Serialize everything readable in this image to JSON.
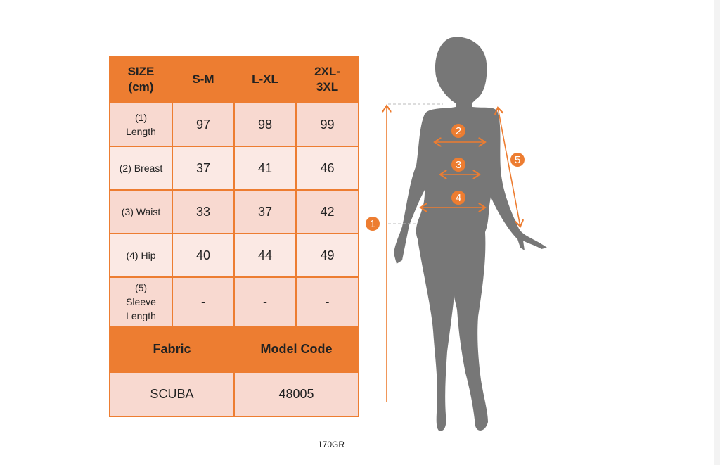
{
  "table": {
    "header": [
      "SIZE (cm)",
      "S-M",
      "L-XL",
      "2XL-3XL"
    ],
    "header_lines": [
      [
        "SIZE",
        "(cm)"
      ],
      [
        "S-M"
      ],
      [
        "L-XL"
      ],
      [
        "2XL-",
        "3XL"
      ]
    ],
    "rows": [
      {
        "label_lines": [
          "(1)",
          "Length"
        ],
        "values": [
          "97",
          "98",
          "99"
        ]
      },
      {
        "label_lines": [
          "(2) Breast"
        ],
        "values": [
          "37",
          "41",
          "46"
        ]
      },
      {
        "label_lines": [
          "(3) Waist"
        ],
        "values": [
          "33",
          "37",
          "42"
        ]
      },
      {
        "label_lines": [
          "(4) Hip"
        ],
        "values": [
          "40",
          "44",
          "49"
        ]
      },
      {
        "label_lines": [
          "(5)",
          "Sleeve",
          "Length"
        ],
        "values": [
          "-",
          "-",
          "-"
        ]
      }
    ],
    "fabric_label": "Fabric",
    "model_code_label": "Model Code",
    "fabric_value": "SCUBA",
    "model_code_value": "48005"
  },
  "caption": "170GR",
  "figure": {
    "markers": [
      "1",
      "2",
      "3",
      "4",
      "5"
    ]
  },
  "colors": {
    "accent": "#ed7d31",
    "row_dark": "#f8d9d0",
    "row_light": "#fbe9e4",
    "silhouette": "#777777"
  }
}
